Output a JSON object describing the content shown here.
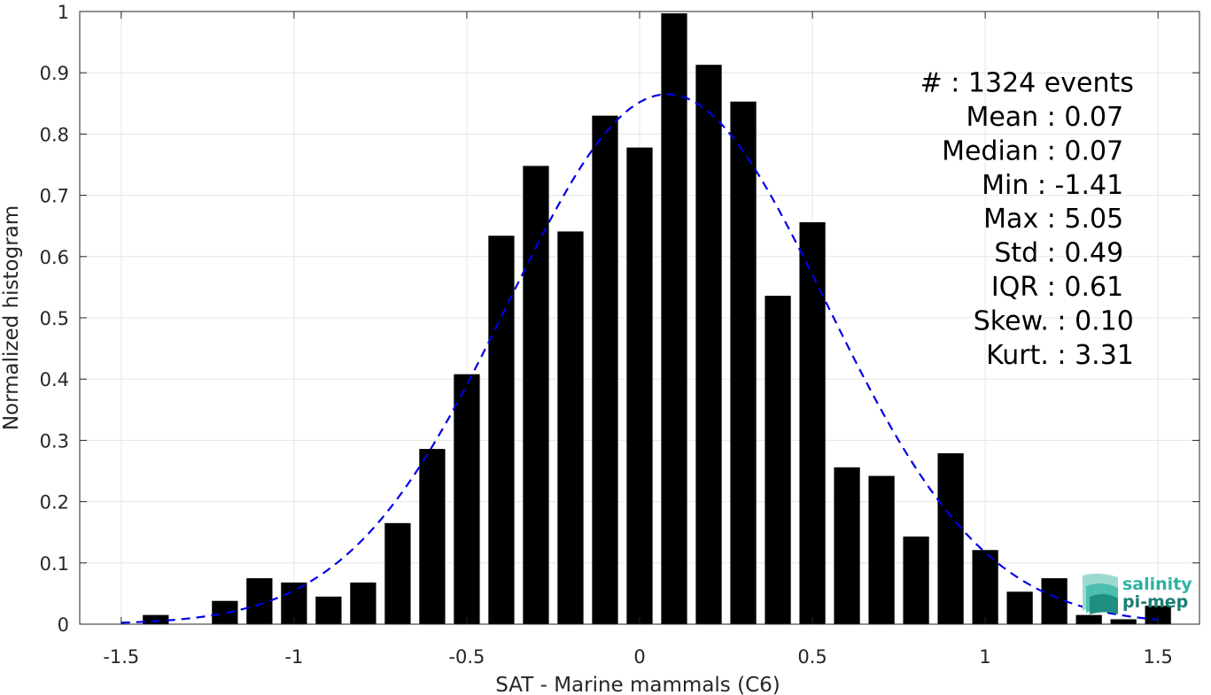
{
  "chart_data": {
    "type": "bar",
    "xlabel": "SAT - Marine mammals (C6)",
    "ylabel": "Normalized histogram",
    "xlim": [
      -1.62,
      1.62
    ],
    "ylim": [
      0,
      1
    ],
    "xticks": [
      -1.5,
      -1,
      -0.5,
      0,
      0.5,
      1,
      1.5
    ],
    "xtick_labels": [
      "-1.5",
      "-1",
      "-0.5",
      "0",
      "0.5",
      "1",
      "1.5"
    ],
    "yticks": [
      0,
      0.1,
      0.2,
      0.3,
      0.4,
      0.5,
      0.6,
      0.7,
      0.8,
      0.9,
      1
    ],
    "ytick_labels": [
      "0",
      "0.1",
      "0.2",
      "0.3",
      "0.4",
      "0.5",
      "0.6",
      "0.7",
      "0.8",
      "0.9",
      "1"
    ],
    "grid": true,
    "bar_width": 0.075,
    "bar_color": "#000000",
    "bins": [
      {
        "x": -1.4,
        "value": 0.015
      },
      {
        "x": -1.2,
        "value": 0.038
      },
      {
        "x": -1.1,
        "value": 0.075
      },
      {
        "x": -1.0,
        "value": 0.068
      },
      {
        "x": -0.9,
        "value": 0.045
      },
      {
        "x": -0.8,
        "value": 0.068
      },
      {
        "x": -0.7,
        "value": 0.165
      },
      {
        "x": -0.6,
        "value": 0.286
      },
      {
        "x": -0.5,
        "value": 0.408
      },
      {
        "x": -0.4,
        "value": 0.634
      },
      {
        "x": -0.3,
        "value": 0.748
      },
      {
        "x": -0.2,
        "value": 0.641
      },
      {
        "x": -0.1,
        "value": 0.83
      },
      {
        "x": 0.0,
        "value": 0.778
      },
      {
        "x": 0.1,
        "value": 0.997
      },
      {
        "x": 0.2,
        "value": 0.913
      },
      {
        "x": 0.3,
        "value": 0.853
      },
      {
        "x": 0.4,
        "value": 0.536
      },
      {
        "x": 0.5,
        "value": 0.656
      },
      {
        "x": 0.6,
        "value": 0.256
      },
      {
        "x": 0.7,
        "value": 0.242
      },
      {
        "x": 0.8,
        "value": 0.143
      },
      {
        "x": 0.9,
        "value": 0.279
      },
      {
        "x": 1.0,
        "value": 0.121
      },
      {
        "x": 1.1,
        "value": 0.053
      },
      {
        "x": 1.2,
        "value": 0.075
      },
      {
        "x": 1.3,
        "value": 0.015
      },
      {
        "x": 1.4,
        "value": 0.008
      },
      {
        "x": 1.5,
        "value": 0.03
      }
    ],
    "fit": {
      "type": "gaussian",
      "mean": 0.08,
      "std": 0.46,
      "peak": 0.865,
      "color": "#0000e6",
      "style": "dashed",
      "x_range": [
        -1.5,
        1.5
      ]
    },
    "stats": [
      {
        "label": "#  : 1324 events",
        "anchor_x": 1.43
      },
      {
        "label": "Mean : 0.07",
        "anchor_x": 1.4
      },
      {
        "label": "Median : 0.07",
        "anchor_x": 1.4
      },
      {
        "label": "Min : -1.41",
        "anchor_x": 1.4
      },
      {
        "label": "Max : 5.05",
        "anchor_x": 1.4
      },
      {
        "label": "Std : 0.49",
        "anchor_x": 1.4
      },
      {
        "label": "IQR : 0.61",
        "anchor_x": 1.4
      },
      {
        "label": "Skew. : 0.10",
        "anchor_x": 1.43
      },
      {
        "label": "Kurt. : 3.31",
        "anchor_x": 1.43
      }
    ],
    "stats_top_y": 0.885,
    "stats_step_y": 0.0555
  },
  "logo": {
    "line1": "salinity",
    "line2": "pi-mep",
    "color1": "#2bb3a0",
    "color2": "#1a7f74"
  }
}
